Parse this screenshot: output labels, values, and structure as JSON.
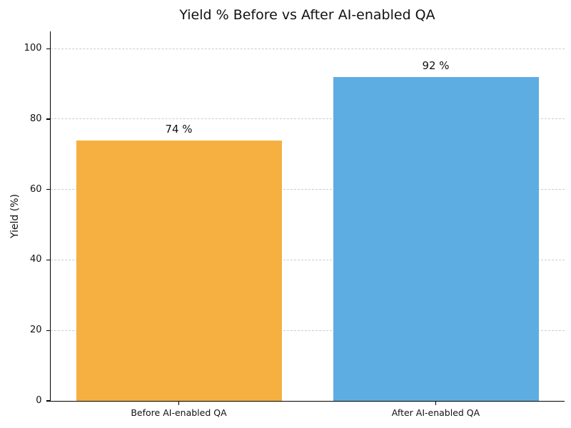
{
  "chart_data": {
    "type": "bar",
    "title": "Yield % Before vs After AI-enabled QA",
    "ylabel": "Yield (%)",
    "xlabel": "",
    "categories": [
      "Before AI-enabled QA",
      "After AI-enabled QA"
    ],
    "values": [
      74,
      92
    ],
    "value_labels": [
      "74 %",
      "92 %"
    ],
    "bar_colors": [
      "#f5b041",
      "#5dade2"
    ],
    "yticks": [
      0,
      20,
      40,
      60,
      80,
      100
    ],
    "ytick_labels": [
      "0",
      "20",
      "40",
      "60",
      "80",
      "100"
    ],
    "ylim": [
      0,
      105
    ],
    "bar_width_fraction": 0.8,
    "grid": {
      "axis": "y",
      "style": "dashed",
      "color": "#cccccc",
      "skip_zero": true
    },
    "legend": "none",
    "colors": {
      "axis": "#000000",
      "text": "#111111",
      "background": "#ffffff"
    }
  }
}
